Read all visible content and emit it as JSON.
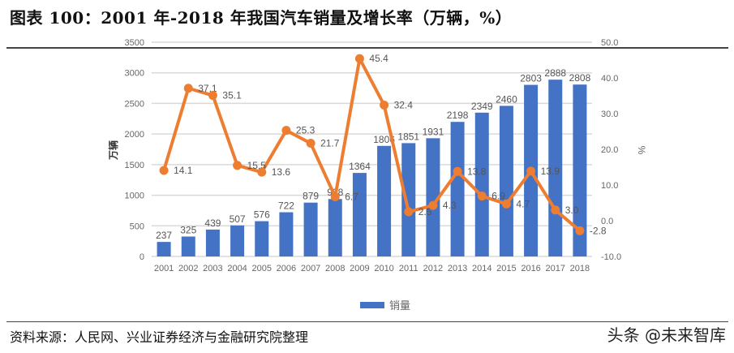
{
  "title": "图表 100：2001 年-2018 年我国汽车销量及增长率（万辆，%）",
  "source": "资料来源：人民网、兴业证券经济与金融研究院整理",
  "watermark": "头条 @未来智库",
  "chart_data": {
    "type": "bar+line",
    "categories": [
      "2001",
      "2002",
      "2003",
      "2004",
      "2005",
      "2006",
      "2007",
      "2008",
      "2009",
      "2010",
      "2011",
      "2012",
      "2013",
      "2014",
      "2015",
      "2016",
      "2017",
      "2018"
    ],
    "series": [
      {
        "name": "销量",
        "type": "bar",
        "axis": "left",
        "color": "#4472C4",
        "values": [
          237,
          325,
          439,
          507,
          576,
          722,
          879,
          938,
          1364,
          1806,
          1851,
          1931,
          2198,
          2349,
          2460,
          2803,
          2888,
          2808
        ]
      },
      {
        "type": "line",
        "axis": "right",
        "color": "#ED7D31",
        "values": [
          14.1,
          37.1,
          35.1,
          15.5,
          13.6,
          25.3,
          21.7,
          6.7,
          45.4,
          32.4,
          2.5,
          4.3,
          13.8,
          6.9,
          4.7,
          13.9,
          3.0,
          -2.8
        ]
      }
    ],
    "ylabel": "万辆",
    "y2label": "%",
    "ylim": [
      0,
      3500
    ],
    "yticks": [
      0,
      500,
      1000,
      1500,
      2000,
      2500,
      3000,
      3500
    ],
    "y2lim": [
      -10,
      50
    ],
    "y2ticks": [
      "-10.0",
      "0.0",
      "10.0",
      "20.0",
      "30.0",
      "40.0",
      "50.0"
    ],
    "grid": true,
    "legend": "bottom"
  }
}
